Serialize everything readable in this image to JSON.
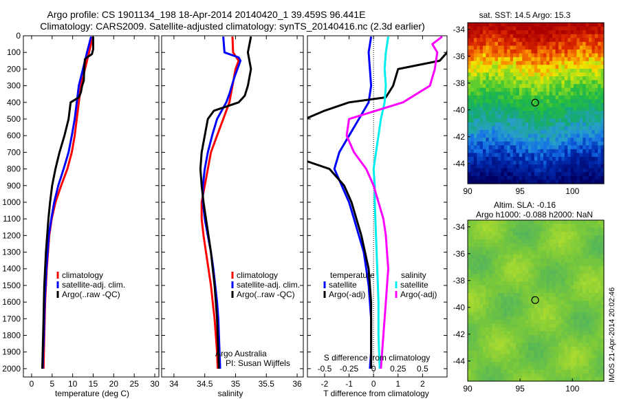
{
  "header": {
    "line1": "Argo profile: CS 1901134_198 18-Apr-2014 20140420_1 39.459S 96.441E",
    "line2": "Climatology: CARS2009. Satellite-adjusted climatology: synTS_20140416.nc (2.3d earlier)"
  },
  "colors": {
    "climatology": "#ff0000",
    "satellite": "#0000ff",
    "argo": "#000000",
    "sal_satellite": "#00eeee",
    "sal_argo": "#ff00ff"
  },
  "chart_data": [
    {
      "type": "line",
      "xlabel": "temperature (deg C)",
      "xlim": [
        -2,
        31
      ],
      "xticks": [
        0,
        5,
        10,
        15,
        20,
        25,
        30
      ],
      "ylim": [
        0,
        2050
      ],
      "yticks": [
        0,
        100,
        200,
        300,
        400,
        500,
        600,
        700,
        800,
        900,
        1000,
        1100,
        1200,
        1300,
        1400,
        1500,
        1600,
        1700,
        1800,
        1900,
        2000
      ],
      "legend": [
        "climatology",
        "satellite-adj. clim.",
        "Argo(..raw -QC)"
      ],
      "series": [
        {
          "name": "climatology",
          "color": "#ff0000",
          "points": [
            [
              14.8,
              5
            ],
            [
              14.5,
              50
            ],
            [
              14,
              100
            ],
            [
              13,
              200
            ],
            [
              12,
              300
            ],
            [
              11.5,
              400
            ],
            [
              11,
              500
            ],
            [
              10.5,
              600
            ],
            [
              9.8,
              700
            ],
            [
              8.7,
              800
            ],
            [
              7.2,
              900
            ],
            [
              5.8,
              1000
            ],
            [
              4.9,
              1100
            ],
            [
              4.3,
              1200
            ],
            [
              4,
              1300
            ],
            [
              3.7,
              1400
            ],
            [
              3.5,
              1500
            ],
            [
              3.3,
              1600
            ],
            [
              3.2,
              1700
            ],
            [
              3.1,
              1800
            ],
            [
              3,
              1900
            ],
            [
              2.9,
              2000
            ]
          ]
        },
        {
          "name": "satellite-adj. clim.",
          "color": "#0000ff",
          "points": [
            [
              14.5,
              5
            ],
            [
              13.5,
              100
            ],
            [
              12.5,
              200
            ],
            [
              11.5,
              300
            ],
            [
              11,
              400
            ],
            [
              10.5,
              500
            ],
            [
              9.8,
              600
            ],
            [
              9,
              700
            ],
            [
              7.8,
              800
            ],
            [
              6.5,
              900
            ],
            [
              5.5,
              1000
            ],
            [
              4.8,
              1100
            ],
            [
              4.2,
              1200
            ],
            [
              3.9,
              1300
            ],
            [
              3.6,
              1400
            ],
            [
              3.4,
              1500
            ],
            [
              3.2,
              1600
            ],
            [
              3.1,
              1700
            ],
            [
              3,
              1800
            ],
            [
              2.8,
              1900
            ],
            [
              2.7,
              2000
            ]
          ]
        },
        {
          "name": "Argo(..raw -QC)",
          "color": "#000000",
          "points": [
            [
              15,
              5
            ],
            [
              15,
              80
            ],
            [
              14.7,
              110
            ],
            [
              13.5,
              130
            ],
            [
              13,
              140
            ],
            [
              12.8,
              200
            ],
            [
              12.7,
              270
            ],
            [
              12.3,
              300
            ],
            [
              12,
              340
            ],
            [
              11.5,
              370
            ],
            [
              9.5,
              400
            ],
            [
              9,
              500
            ],
            [
              8,
              600
            ],
            [
              6.8,
              700
            ],
            [
              5.8,
              800
            ],
            [
              5,
              900
            ],
            [
              4.5,
              1000
            ],
            [
              4.1,
              1100
            ],
            [
              3.8,
              1200
            ],
            [
              3.5,
              1300
            ],
            [
              3.3,
              1400
            ],
            [
              3.1,
              1500
            ],
            [
              3,
              1600
            ],
            [
              2.9,
              1700
            ],
            [
              2.8,
              1800
            ],
            [
              2.7,
              1900
            ],
            [
              2.6,
              2000
            ]
          ]
        }
      ]
    },
    {
      "type": "line",
      "xlabel": "salinity",
      "xlim": [
        33.8,
        36.1
      ],
      "xticks": [
        34,
        34.5,
        35,
        35.5,
        36
      ],
      "ylim": [
        0,
        2050
      ],
      "legend": [
        "climatology",
        "satellite-adj. clim.",
        "Argo(..raw -QC)"
      ],
      "annotations": [
        "Argo Australia",
        "PI: Susan Wijffels"
      ],
      "series": [
        {
          "name": "climatology",
          "color": "#ff0000",
          "points": [
            [
              34.95,
              5
            ],
            [
              34.96,
              100
            ],
            [
              35.05,
              150
            ],
            [
              35,
              200
            ],
            [
              34.95,
              300
            ],
            [
              34.9,
              400
            ],
            [
              34.8,
              500
            ],
            [
              34.7,
              600
            ],
            [
              34.6,
              700
            ],
            [
              34.55,
              800
            ],
            [
              34.5,
              900
            ],
            [
              34.45,
              1000
            ],
            [
              34.45,
              1100
            ],
            [
              34.48,
              1200
            ],
            [
              34.52,
              1300
            ],
            [
              34.56,
              1400
            ],
            [
              34.6,
              1500
            ],
            [
              34.63,
              1600
            ],
            [
              34.66,
              1700
            ],
            [
              34.68,
              1800
            ],
            [
              34.7,
              1900
            ],
            [
              34.71,
              2000
            ]
          ]
        },
        {
          "name": "satellite-adj. clim.",
          "color": "#0000ff",
          "points": [
            [
              34.8,
              5
            ],
            [
              34.82,
              100
            ],
            [
              35.05,
              130
            ],
            [
              35.08,
              150
            ],
            [
              34.98,
              250
            ],
            [
              34.9,
              350
            ],
            [
              34.85,
              400
            ],
            [
              34.7,
              500
            ],
            [
              34.62,
              600
            ],
            [
              34.55,
              700
            ],
            [
              34.5,
              800
            ],
            [
              34.47,
              900
            ],
            [
              34.47,
              1000
            ],
            [
              34.5,
              1100
            ],
            [
              34.55,
              1200
            ],
            [
              34.6,
              1300
            ],
            [
              34.64,
              1400
            ],
            [
              34.67,
              1500
            ],
            [
              34.7,
              1600
            ],
            [
              34.72,
              1700
            ],
            [
              34.73,
              1800
            ],
            [
              34.74,
              1900
            ],
            [
              34.75,
              2000
            ]
          ]
        },
        {
          "name": "Argo(..raw -QC)",
          "color": "#000000",
          "points": [
            [
              35.25,
              5
            ],
            [
              35.2,
              100
            ],
            [
              35.25,
              200
            ],
            [
              35.2,
              300
            ],
            [
              35.15,
              360
            ],
            [
              35.05,
              400
            ],
            [
              34.65,
              450
            ],
            [
              34.55,
              500
            ],
            [
              34.5,
              600
            ],
            [
              34.45,
              700
            ],
            [
              34.43,
              800
            ],
            [
              34.45,
              900
            ],
            [
              34.48,
              1000
            ],
            [
              34.52,
              1100
            ],
            [
              34.56,
              1200
            ],
            [
              34.6,
              1300
            ],
            [
              34.63,
              1400
            ],
            [
              34.66,
              1500
            ],
            [
              34.68,
              1600
            ],
            [
              34.7,
              1700
            ],
            [
              34.71,
              1800
            ],
            [
              34.72,
              1900
            ],
            [
              34.73,
              2000
            ]
          ]
        }
      ]
    },
    {
      "type": "line",
      "xlabel": "T difference from climatology",
      "xlabel2": "S difference from climatology",
      "xlim": [
        -2.7,
        3
      ],
      "xticks": [
        -2,
        -1,
        0,
        1,
        2
      ],
      "xticks2_labels": [
        "-0.5",
        "-0.25",
        "0",
        "0.25",
        "0.5"
      ],
      "xticks2_values": [
        -0.5,
        -0.25,
        0,
        0.25,
        0.5
      ],
      "ylim": [
        0,
        2050
      ],
      "legend_headers": [
        "temperature",
        "salinity"
      ],
      "legend": [
        "satellite",
        "Argo(-adj)",
        "satellite",
        "Argo(-adj)"
      ],
      "series": [
        {
          "name": "temperature satellite",
          "color": "#0000ff",
          "points": [
            [
              -0.1,
              5
            ],
            [
              -0.2,
              100
            ],
            [
              -0.15,
              200
            ],
            [
              -0.1,
              300
            ],
            [
              -0.2,
              400
            ],
            [
              -0.6,
              500
            ],
            [
              -1,
              600
            ],
            [
              -1.4,
              700
            ],
            [
              -1.6,
              800
            ],
            [
              -1.3,
              900
            ],
            [
              -1,
              1000
            ],
            [
              -0.8,
              1100
            ],
            [
              -0.6,
              1200
            ],
            [
              -0.4,
              1300
            ],
            [
              -0.3,
              1400
            ],
            [
              -0.2,
              1500
            ],
            [
              -0.15,
              1600
            ],
            [
              -0.1,
              1700
            ],
            [
              -0.1,
              1800
            ],
            [
              -0.1,
              1900
            ],
            [
              -0.15,
              2000
            ]
          ]
        },
        {
          "name": "temperature Argo(-adj)",
          "color": "#000000",
          "points": [
            [
              3.2,
              5
            ],
            [
              3,
              100
            ],
            [
              2.7,
              150
            ],
            [
              1,
              200
            ],
            [
              0.8,
              300
            ],
            [
              0.5,
              370
            ],
            [
              -1,
              400
            ],
            [
              -2,
              450
            ],
            [
              -2.8,
              500
            ],
            [
              -3,
              600
            ],
            [
              -2.8,
              750
            ],
            [
              -1.8,
              800
            ],
            [
              -1.2,
              900
            ],
            [
              -0.9,
              1000
            ],
            [
              -0.7,
              1100
            ],
            [
              -0.5,
              1200
            ],
            [
              -0.35,
              1300
            ],
            [
              -0.2,
              1400
            ],
            [
              -0.15,
              1500
            ],
            [
              -0.1,
              1600
            ],
            [
              -0.1,
              1700
            ],
            [
              -0.1,
              1800
            ],
            [
              -0.1,
              1900
            ],
            [
              -0.1,
              2000
            ]
          ]
        },
        {
          "name": "salinity satellite",
          "color": "#00eeee",
          "points": [
            [
              0.6,
              5
            ],
            [
              0.5,
              100
            ],
            [
              0.45,
              200
            ],
            [
              0.5,
              300
            ],
            [
              0.45,
              400
            ],
            [
              0.3,
              500
            ],
            [
              0.2,
              600
            ],
            [
              0.1,
              700
            ],
            [
              0,
              800
            ],
            [
              0.05,
              900
            ],
            [
              0.05,
              1000
            ],
            [
              0.1,
              1200
            ],
            [
              0.15,
              1400
            ],
            [
              0.2,
              1600
            ],
            [
              0.2,
              1800
            ],
            [
              0.25,
              2000
            ]
          ]
        },
        {
          "name": "salinity Argo(-adj)",
          "color": "#ff00ff",
          "points": [
            [
              2.8,
              5
            ],
            [
              2.4,
              50
            ],
            [
              2.6,
              100
            ],
            [
              2.5,
              200
            ],
            [
              2.3,
              300
            ],
            [
              1.2,
              400
            ],
            [
              -1,
              500
            ],
            [
              -1.1,
              600
            ],
            [
              -0.8,
              700
            ],
            [
              -0.3,
              800
            ],
            [
              0,
              900
            ],
            [
              0.2,
              1000
            ],
            [
              0.4,
              1100
            ],
            [
              0.5,
              1200
            ],
            [
              0.55,
              1300
            ],
            [
              0.6,
              1400
            ],
            [
              0.55,
              1500
            ],
            [
              0.5,
              1600
            ],
            [
              0.45,
              1700
            ],
            [
              0.4,
              1800
            ],
            [
              0.35,
              1900
            ],
            [
              0.3,
              2000
            ]
          ]
        }
      ]
    },
    {
      "type": "heatmap",
      "title": "sat. SST: 14.5 Argo: 15.3",
      "xlim": [
        90,
        103
      ],
      "ylim": [
        -45.5,
        -33.5
      ],
      "xticks": [
        90,
        95,
        100
      ],
      "yticks": [
        -34,
        -36,
        -38,
        -40,
        -42,
        -44
      ],
      "marker": [
        96.441,
        -39.459
      ]
    },
    {
      "type": "heatmap",
      "title": "Altim. SLA: -0.16",
      "subtitle": "Argo h1000: -0.088 h2000: NaN",
      "xlim": [
        90,
        103
      ],
      "ylim": [
        -45.5,
        -33.5
      ],
      "xticks": [
        90,
        95,
        100
      ],
      "yticks": [
        -34,
        -36,
        -38,
        -40,
        -42,
        -44
      ],
      "marker": [
        96.441,
        -39.459
      ]
    }
  ],
  "imos_label": "IMOS 21-Apr-2014 20:02:46"
}
